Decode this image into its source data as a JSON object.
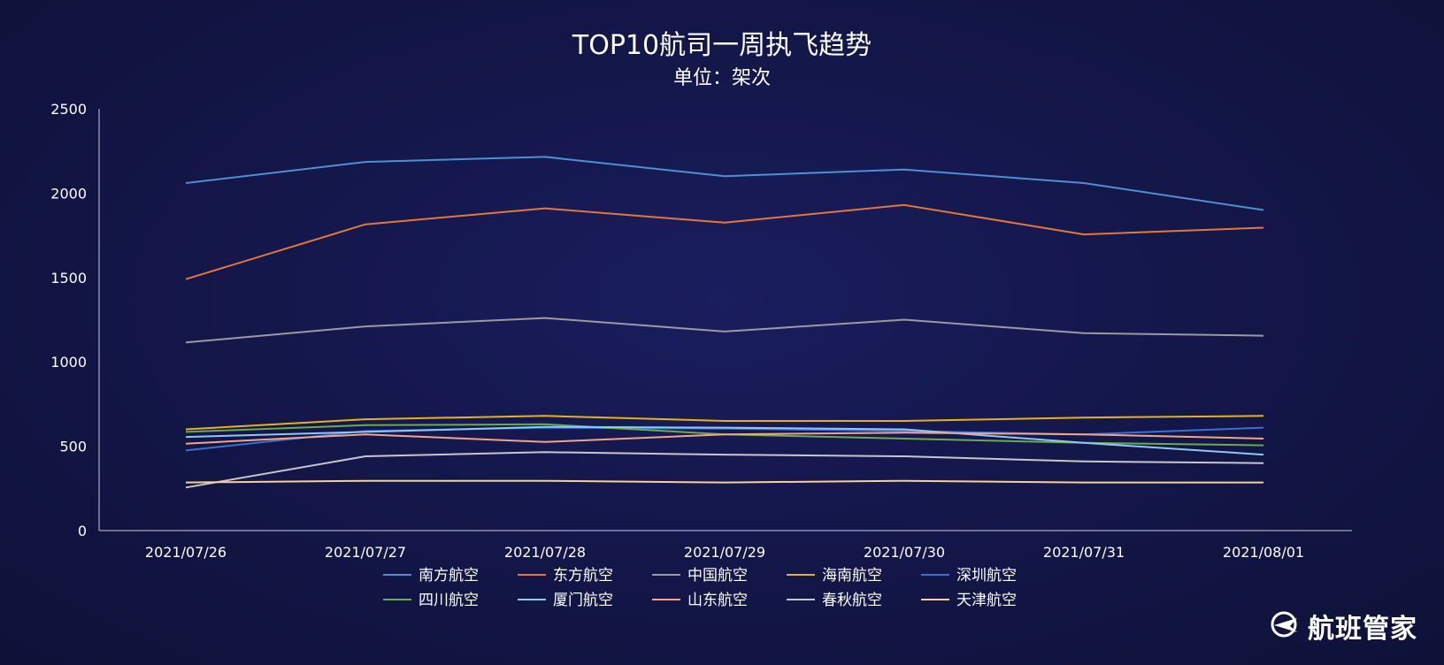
{
  "title": "TOP10航司一周执飞趋势",
  "subtitle": "单位：架次",
  "brand": {
    "name": "航班管家",
    "logo": "plane-logo-icon"
  },
  "chart_data": {
    "type": "line",
    "x": [
      "2021/07/26",
      "2021/07/27",
      "2021/07/28",
      "2021/07/29",
      "2021/07/30",
      "2021/07/31",
      "2021/08/01"
    ],
    "ylim": [
      0,
      2500
    ],
    "yticks": [
      0,
      500,
      1000,
      1500,
      2000,
      2500
    ],
    "grid": false,
    "legend": "bottom",
    "series": [
      {
        "name": "南方航空",
        "color": "#4f8fd6",
        "values": [
          2060,
          2185,
          2215,
          2100,
          2140,
          2060,
          1900
        ]
      },
      {
        "name": "东方航空",
        "color": "#e3783b",
        "values": [
          1490,
          1815,
          1910,
          1825,
          1930,
          1755,
          1795
        ]
      },
      {
        "name": "中国航空",
        "color": "#9a9aa3",
        "values": [
          1115,
          1210,
          1260,
          1180,
          1250,
          1170,
          1155
        ]
      },
      {
        "name": "海南航空",
        "color": "#e6b21c",
        "values": [
          600,
          660,
          680,
          650,
          650,
          670,
          680
        ]
      },
      {
        "name": "深圳航空",
        "color": "#3b6fd1",
        "values": [
          475,
          590,
          610,
          605,
          590,
          570,
          610
        ]
      },
      {
        "name": "四川航空",
        "color": "#6aab4a",
        "values": [
          585,
          625,
          630,
          570,
          545,
          520,
          505
        ]
      },
      {
        "name": "厦门航空",
        "color": "#8ec7f2",
        "values": [
          555,
          585,
          615,
          610,
          600,
          520,
          450
        ]
      },
      {
        "name": "山东航空",
        "color": "#f2a58a",
        "values": [
          515,
          570,
          525,
          570,
          580,
          570,
          545
        ]
      },
      {
        "name": "春秋航空",
        "color": "#c6c6cc",
        "values": [
          255,
          440,
          465,
          450,
          440,
          410,
          400
        ]
      },
      {
        "name": "天津航空",
        "color": "#f6d294",
        "values": [
          285,
          295,
          295,
          285,
          295,
          285,
          285
        ]
      }
    ]
  }
}
